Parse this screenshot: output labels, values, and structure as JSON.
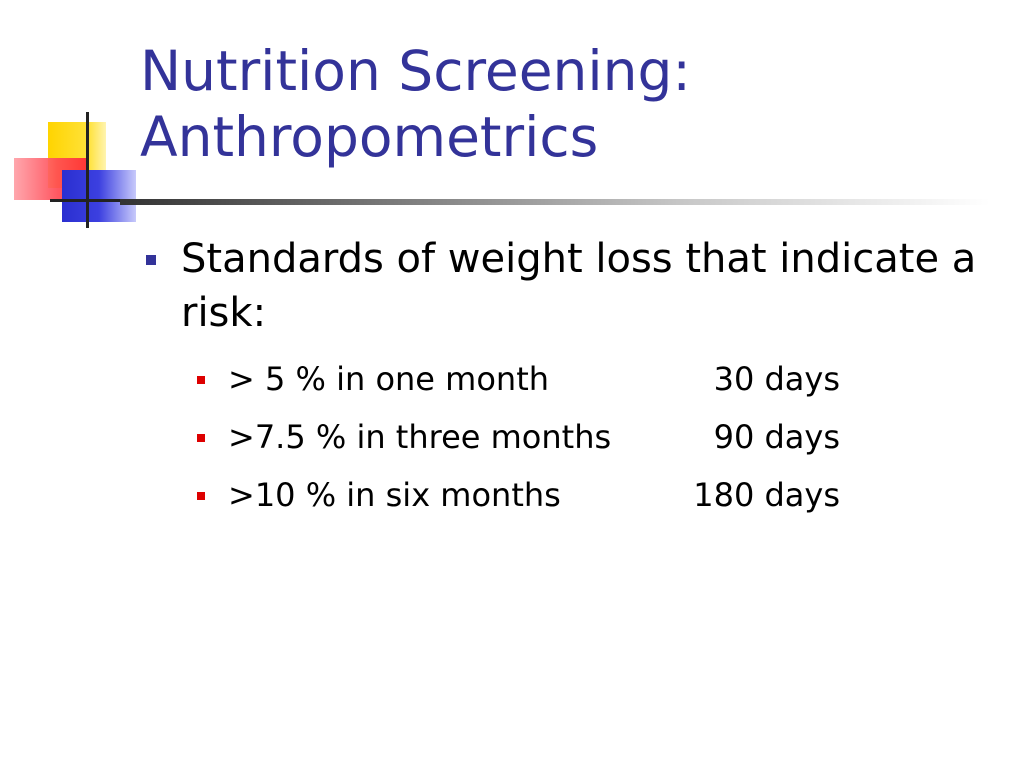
{
  "slide": {
    "title_line1": "Nutrition Screening:",
    "title_line2": "Anthropometrics",
    "bullets": [
      {
        "text": "Standards of weight loss that indicate a risk:",
        "sub": [
          {
            "label": "> 5 % in one month",
            "days": "30 days"
          },
          {
            "label": ">7.5 % in three months",
            "days": "90 days"
          },
          {
            "label": ">10 % in six months",
            "days": "180 days"
          }
        ]
      }
    ]
  },
  "colors": {
    "title": "#333399",
    "level1_bullet": "#333399",
    "level2_bullet": "#dd0000"
  }
}
